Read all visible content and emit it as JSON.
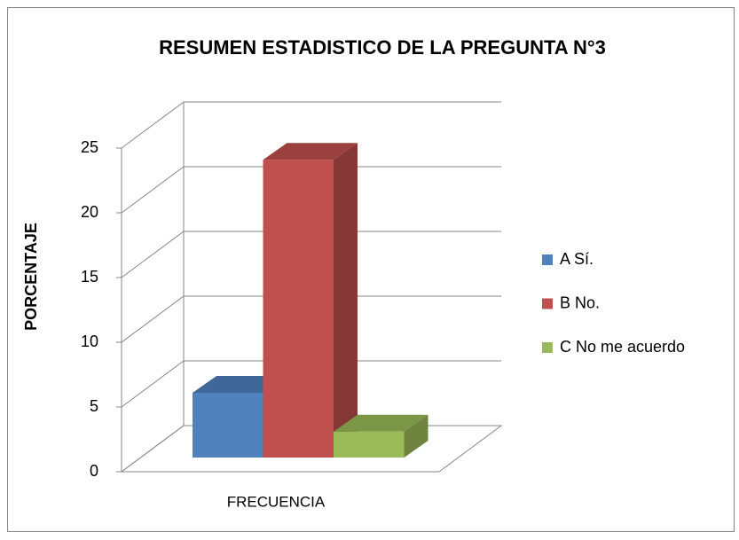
{
  "chart_data": {
    "type": "bar",
    "title": "RESUMEN ESTADISTICO DE LA PREGUNTA  N°3",
    "ylabel": "PORCENTAJE",
    "categories": [
      "FRECUENCIA"
    ],
    "series": [
      {
        "name": "A Sí.",
        "color": "#4f81bd",
        "values": [
          5
        ]
      },
      {
        "name": "B No.",
        "color": "#c0504d",
        "values": [
          23
        ]
      },
      {
        "name": "C No me acuerdo",
        "color": "#9bbb59",
        "values": [
          2
        ]
      }
    ],
    "ylim": [
      0,
      25
    ],
    "yticks": [
      0,
      5,
      10,
      15,
      20,
      25
    ],
    "grid": true,
    "legend": "right"
  }
}
